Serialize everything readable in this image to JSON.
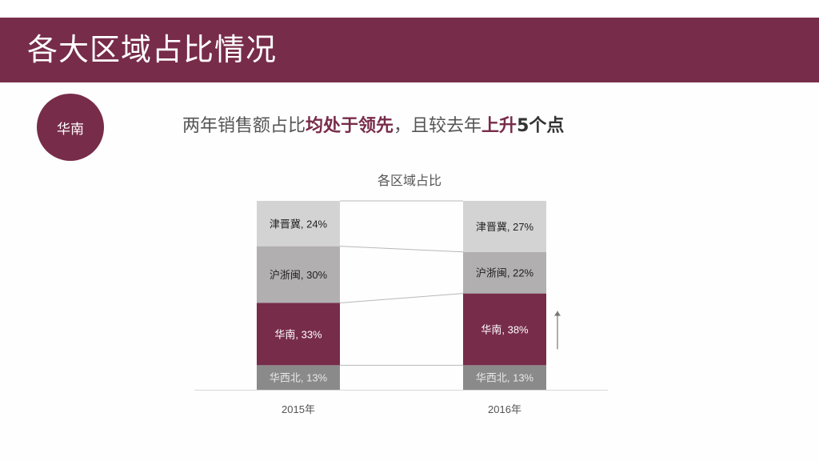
{
  "header": {
    "title": "各大区域占比情况"
  },
  "badge": {
    "label": "华南"
  },
  "headline": {
    "part1": "两年销售额占比",
    "part2": "均处于领先",
    "part3": "，且较去年",
    "part4": "上升",
    "part5": "5个点"
  },
  "colors": {
    "accent": "#772c4a",
    "bg": "#fefefe"
  },
  "chart_data": {
    "type": "bar",
    "stacked": true,
    "title": "各区域占比",
    "categories": [
      "2015年",
      "2016年"
    ],
    "series": [
      {
        "name": "华西北",
        "values": [
          13,
          13
        ],
        "color": "#8a8a8a"
      },
      {
        "name": "华南",
        "values": [
          33,
          38
        ],
        "color": "#772c4a"
      },
      {
        "name": "沪浙闽",
        "values": [
          30,
          22
        ],
        "color": "#b1afb0"
      },
      {
        "name": "津晋冀",
        "values": [
          24,
          27
        ],
        "color": "#d4d3d4"
      }
    ],
    "data_labels": [
      [
        "华西北, 13%",
        "华西北, 13%"
      ],
      [
        "华南, 33%",
        "华南, 38%"
      ],
      [
        "沪浙闽, 30%",
        "沪浙闽, 22%"
      ],
      [
        "津晋冀, 24%",
        "津晋冀, 27%"
      ]
    ],
    "annotation": "up-arrow",
    "ylim": [
      0,
      100
    ]
  }
}
